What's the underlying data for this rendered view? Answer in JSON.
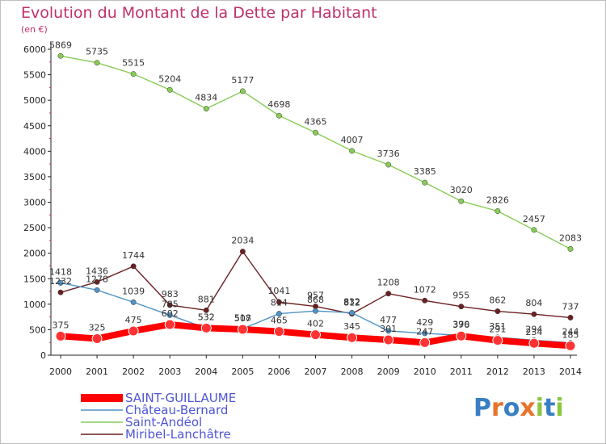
{
  "chart_data": {
    "type": "line",
    "title": "Evolution du Montant de la Dette par Habitant",
    "unit_label": "(en €)",
    "x": [
      "2000",
      "2001",
      "2002",
      "2003",
      "2004",
      "2005",
      "2006",
      "2007",
      "2008",
      "2009",
      "2010",
      "2011",
      "2012",
      "2013",
      "2014"
    ],
    "ylim": [
      0,
      6000
    ],
    "yticks": [
      "0",
      "500",
      "1000",
      "1500",
      "2000",
      "2500",
      "3000",
      "3500",
      "4000",
      "4500",
      "5000",
      "5500",
      "6000"
    ],
    "grid": false,
    "legend_position": "bottom-left",
    "series": [
      {
        "name": "SAINT-GUILLAUME",
        "color": "#ff0000",
        "marker_color": "#ff3333",
        "values": [
          375,
          325,
          475,
          602,
          532,
          507,
          465,
          402,
          345,
          301,
          247,
          376,
          291,
          234,
          185
        ]
      },
      {
        "name": "Château-Bernard",
        "color": "#4f93c8",
        "marker_color": "#4f93c8",
        "values": [
          1418,
          1278,
          1039,
          785,
          532,
          518,
          814,
          868,
          832,
          477,
          429,
          390,
          351,
          294,
          244
        ]
      },
      {
        "name": "Saint-Andéol",
        "color": "#88cc55",
        "marker_color": "#88cc55",
        "values": [
          5869,
          5735,
          5515,
          5204,
          4834,
          5177,
          4698,
          4365,
          4007,
          3736,
          3385,
          3020,
          2826,
          2457,
          2083
        ]
      },
      {
        "name": "Miribel-Lanchâtre",
        "color": "#6b1f22",
        "marker_color": "#6b1f22",
        "values": [
          1232,
          1436,
          1744,
          983,
          881,
          2034,
          1041,
          957,
          812,
          1208,
          1072,
          955,
          862,
          804,
          737
        ]
      }
    ]
  },
  "logo": {
    "text": "Proxiti",
    "colors": [
      "#3a7fc4",
      "#e8732a",
      "#3a7fc4",
      "#e8732a",
      "#8cc63f",
      "#3a7fc4",
      "#8cc63f"
    ]
  }
}
